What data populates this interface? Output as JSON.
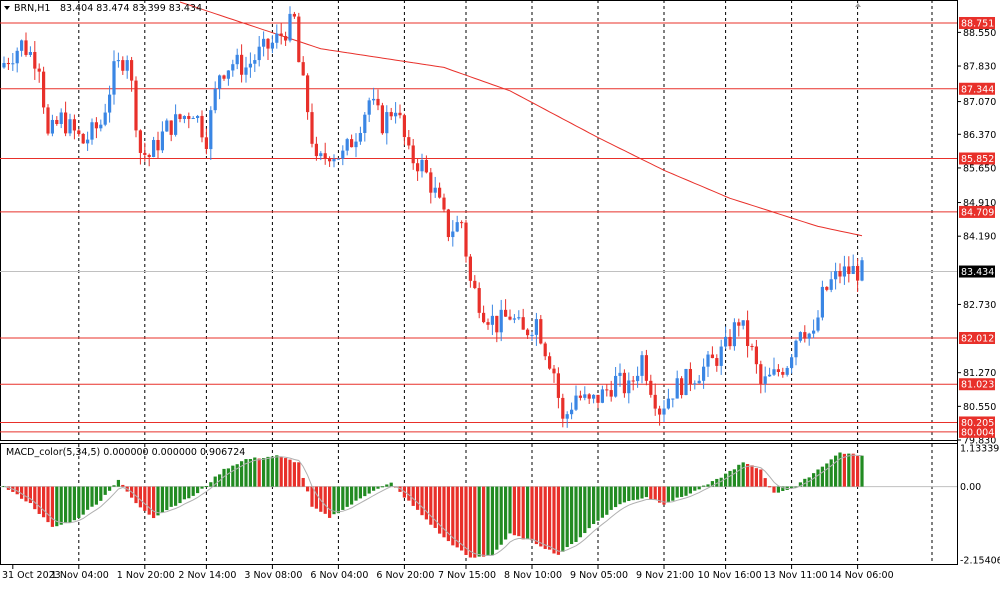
{
  "header": {
    "symbol": "BRN,H1",
    "ohlc": "83.404 83.474 83.399 83.434",
    "indicator": "MACD_color(5,34,5) 0.000000 0.000000 0.906724"
  },
  "colors": {
    "bull": "#3a86e4",
    "bear": "#e8302a",
    "level": "#e8302a",
    "ma": "#e8302a",
    "macd_pos": "#228b22",
    "macd_neg": "#e8302a",
    "grid": "#000000",
    "price_tag": "#000000"
  },
  "chart_data": [
    {
      "type": "candlestick",
      "ylim": [
        79.83,
        89.2
      ],
      "y_ticks": [
        "88.550",
        "87.830",
        "87.070",
        "86.370",
        "85.650",
        "84.910",
        "84.190",
        "82.730",
        "81.270",
        "80.550",
        "79.830"
      ],
      "x_ticks": [
        "31 Oct 2023",
        "1 Nov 04:00",
        "1 Nov 20:00",
        "2 Nov 14:00",
        "3 Nov 08:00",
        "6 Nov 04:00",
        "6 Nov 20:00",
        "7 Nov 15:00",
        "8 Nov 10:00",
        "9 Nov 05:00",
        "9 Nov 21:00",
        "10 Nov 16:00",
        "13 Nov 11:00",
        "14 Nov 06:00"
      ],
      "levels": [
        "88.751",
        "87.344",
        "85.852",
        "84.709",
        "82.012",
        "81.023",
        "80.205",
        "80.004"
      ],
      "current_price": "83.434",
      "close_path": [
        [
          0,
          87.9
        ],
        [
          4,
          88.3
        ],
        [
          8,
          87.9
        ],
        [
          10,
          86.3
        ],
        [
          13,
          86.7
        ],
        [
          18,
          86.2
        ],
        [
          22,
          86.6
        ],
        [
          25,
          87.7
        ],
        [
          28,
          88.1
        ],
        [
          31,
          86.0
        ],
        [
          33,
          85.9
        ],
        [
          37,
          86.5
        ],
        [
          40,
          86.7
        ],
        [
          43,
          86.9
        ],
        [
          46,
          86.3
        ],
        [
          49,
          87.7
        ],
        [
          52,
          87.9
        ],
        [
          55,
          87.8
        ],
        [
          58,
          88.1
        ],
        [
          61,
          88.3
        ],
        [
          64,
          88.6
        ],
        [
          66,
          88.8
        ],
        [
          67,
          87.9
        ],
        [
          69,
          86.9
        ],
        [
          71,
          85.7
        ],
        [
          74,
          86.0
        ],
        [
          77,
          85.9
        ],
        [
          80,
          86.4
        ],
        [
          83,
          87.1
        ],
        [
          86,
          86.6
        ],
        [
          89,
          87.0
        ],
        [
          92,
          85.9
        ],
        [
          95,
          85.7
        ],
        [
          98,
          85.1
        ],
        [
          101,
          84.3
        ],
        [
          104,
          84.5
        ],
        [
          106,
          83.2
        ],
        [
          109,
          82.6
        ],
        [
          112,
          82.3
        ],
        [
          115,
          82.5
        ],
        [
          118,
          82.1
        ],
        [
          121,
          82.4
        ],
        [
          123,
          81.8
        ],
        [
          125,
          81.3
        ],
        [
          127,
          80.2
        ],
        [
          130,
          80.8
        ],
        [
          133,
          80.6
        ],
        [
          136,
          80.8
        ],
        [
          139,
          81.1
        ],
        [
          142,
          80.9
        ],
        [
          145,
          81.6
        ],
        [
          147,
          81.0
        ],
        [
          149,
          80.5
        ],
        [
          152,
          80.9
        ],
        [
          155,
          81.1
        ],
        [
          158,
          81.3
        ],
        [
          161,
          81.5
        ],
        [
          164,
          81.8
        ],
        [
          167,
          82.4
        ],
        [
          170,
          81.7
        ],
        [
          172,
          81.0
        ],
        [
          175,
          81.2
        ],
        [
          178,
          81.5
        ],
        [
          181,
          82.3
        ],
        [
          184,
          82.0
        ],
        [
          186,
          82.9
        ],
        [
          188,
          83.2
        ],
        [
          190,
          83.4
        ],
        [
          193,
          83.45
        ],
        [
          195,
          83.434
        ]
      ],
      "ma_path": [
        [
          40,
          89.2
        ],
        [
          72,
          88.2
        ],
        [
          100,
          87.8
        ],
        [
          115,
          87.3
        ],
        [
          135,
          86.3
        ],
        [
          150,
          85.6
        ],
        [
          165,
          85.0
        ],
        [
          185,
          84.4
        ],
        [
          195,
          84.2
        ]
      ]
    },
    {
      "type": "macd_histogram",
      "ylim": [
        -2.3,
        1.25
      ],
      "y_ticks": [
        "1.13339",
        "0.00",
        "-2.15406"
      ],
      "path": [
        [
          0,
          0.0
        ],
        [
          6,
          -0.5
        ],
        [
          11,
          -1.2
        ],
        [
          16,
          -1.0
        ],
        [
          22,
          -0.4
        ],
        [
          26,
          0.2
        ],
        [
          30,
          -0.5
        ],
        [
          34,
          -0.9
        ],
        [
          38,
          -0.6
        ],
        [
          44,
          -0.2
        ],
        [
          50,
          0.5
        ],
        [
          55,
          0.8
        ],
        [
          62,
          0.9
        ],
        [
          67,
          0.7
        ],
        [
          70,
          -0.6
        ],
        [
          74,
          -0.9
        ],
        [
          78,
          -0.6
        ],
        [
          84,
          -0.1
        ],
        [
          88,
          0.1
        ],
        [
          94,
          -0.7
        ],
        [
          100,
          -1.5
        ],
        [
          106,
          -2.1
        ],
        [
          111,
          -2.0
        ],
        [
          115,
          -1.4
        ],
        [
          120,
          -1.6
        ],
        [
          126,
          -2.0
        ],
        [
          130,
          -1.6
        ],
        [
          134,
          -1.1
        ],
        [
          140,
          -0.5
        ],
        [
          146,
          -0.3
        ],
        [
          150,
          -0.5
        ],
        [
          156,
          -0.2
        ],
        [
          162,
          0.2
        ],
        [
          168,
          0.7
        ],
        [
          172,
          0.5
        ],
        [
          175,
          -0.2
        ],
        [
          180,
          0.0
        ],
        [
          186,
          0.6
        ],
        [
          190,
          1.0
        ],
        [
          195,
          0.9
        ]
      ]
    }
  ]
}
